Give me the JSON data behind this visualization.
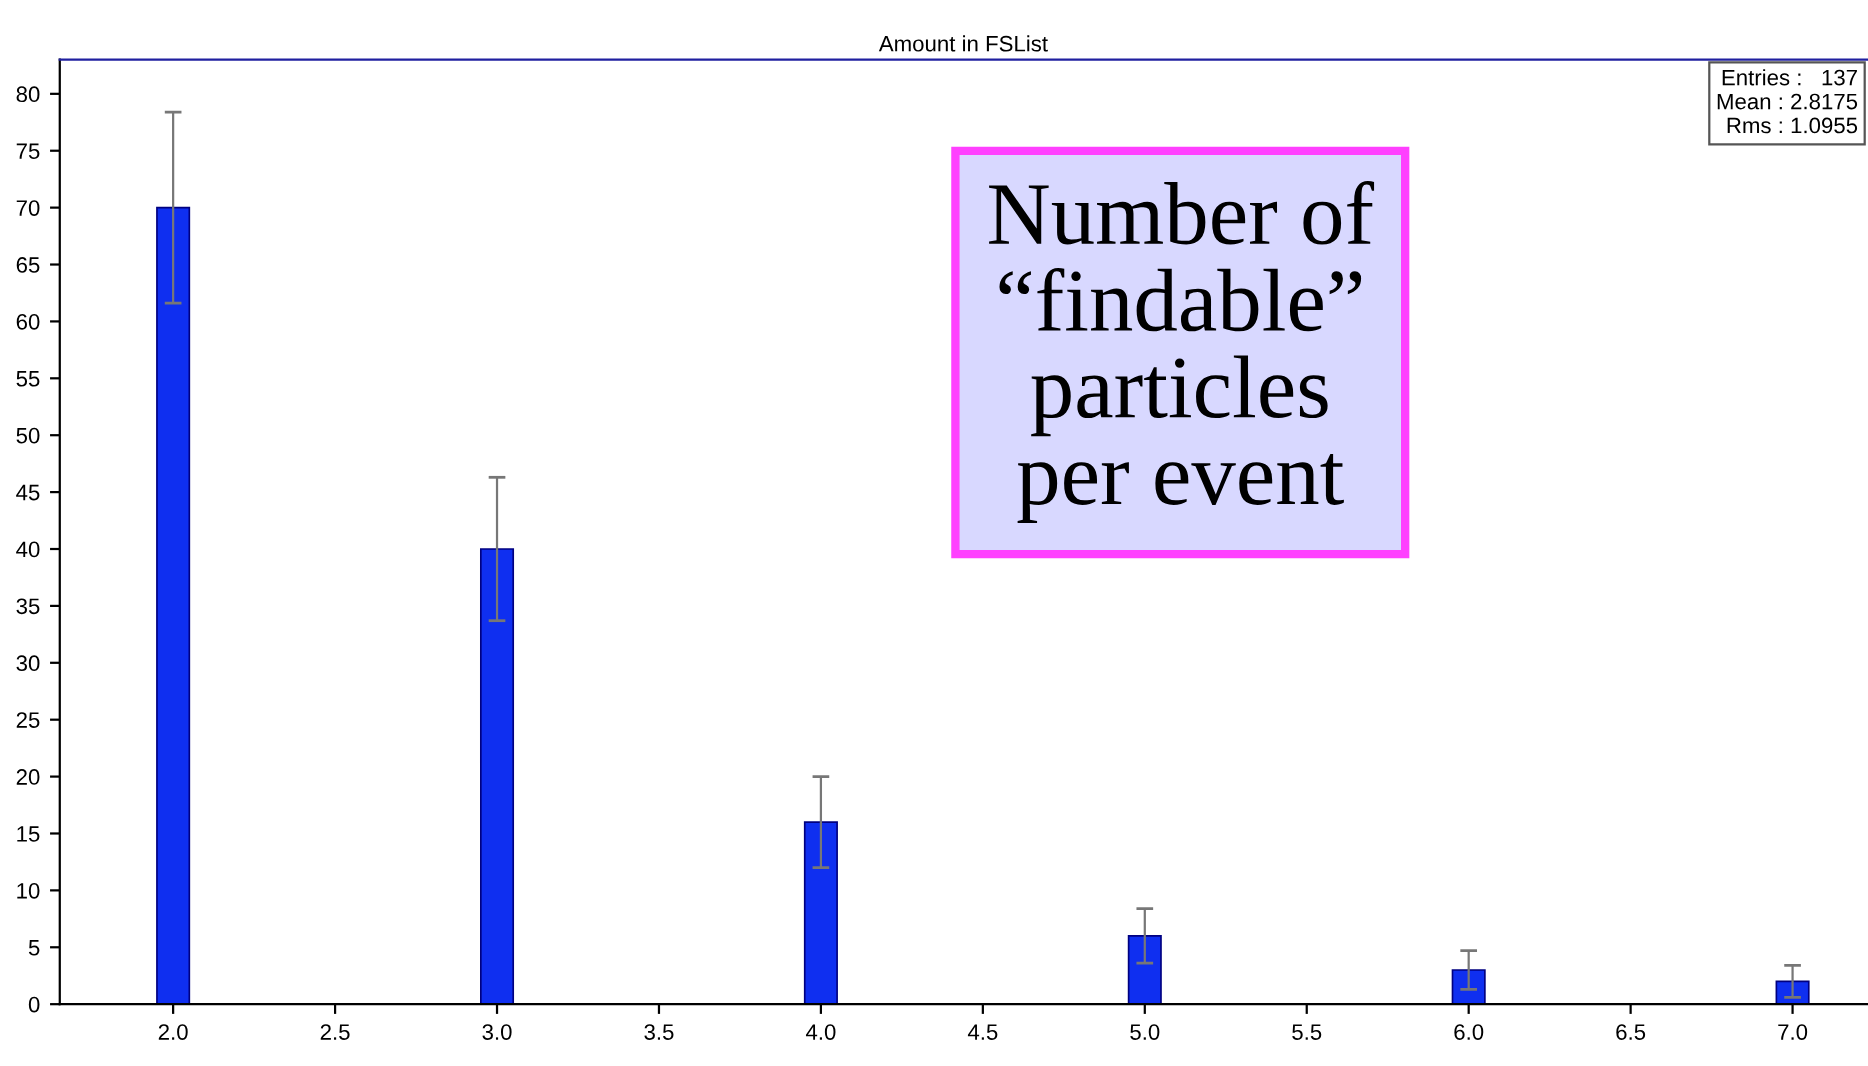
{
  "chart_data": {
    "type": "bar",
    "title": "Amount in FSList",
    "x": [
      2.0,
      3.0,
      4.0,
      5.0,
      6.0,
      7.0
    ],
    "values": [
      70,
      40,
      16,
      6,
      3,
      2
    ],
    "errors": [
      8.4,
      6.3,
      4,
      2.4,
      1.7,
      1.4
    ],
    "color": "#0f2ff0",
    "xlim": [
      1.65,
      7.23
    ],
    "ylim": [
      0,
      83
    ],
    "xticks": [
      {
        "value": 2.0,
        "label": "2.0"
      },
      {
        "value": 2.5,
        "label": "2.5"
      },
      {
        "value": 3.0,
        "label": "3.0"
      },
      {
        "value": 3.5,
        "label": "3.5"
      },
      {
        "value": 4.0,
        "label": "4.0"
      },
      {
        "value": 4.5,
        "label": "4.5"
      },
      {
        "value": 5.0,
        "label": "5.0"
      },
      {
        "value": 5.5,
        "label": "5.5"
      },
      {
        "value": 6.0,
        "label": "6.0"
      },
      {
        "value": 6.5,
        "label": "6.5"
      },
      {
        "value": 7.0,
        "label": "7.0"
      }
    ],
    "yticks": [
      0,
      5,
      10,
      15,
      20,
      25,
      30,
      35,
      40,
      45,
      50,
      55,
      60,
      65,
      70,
      75,
      80
    ],
    "grid": false,
    "annotations": [
      "Entries :   137\nMean : 2.8175\nRms : 1.0955",
      "Number of\n“findable”\nparticles\nper event"
    ]
  }
}
